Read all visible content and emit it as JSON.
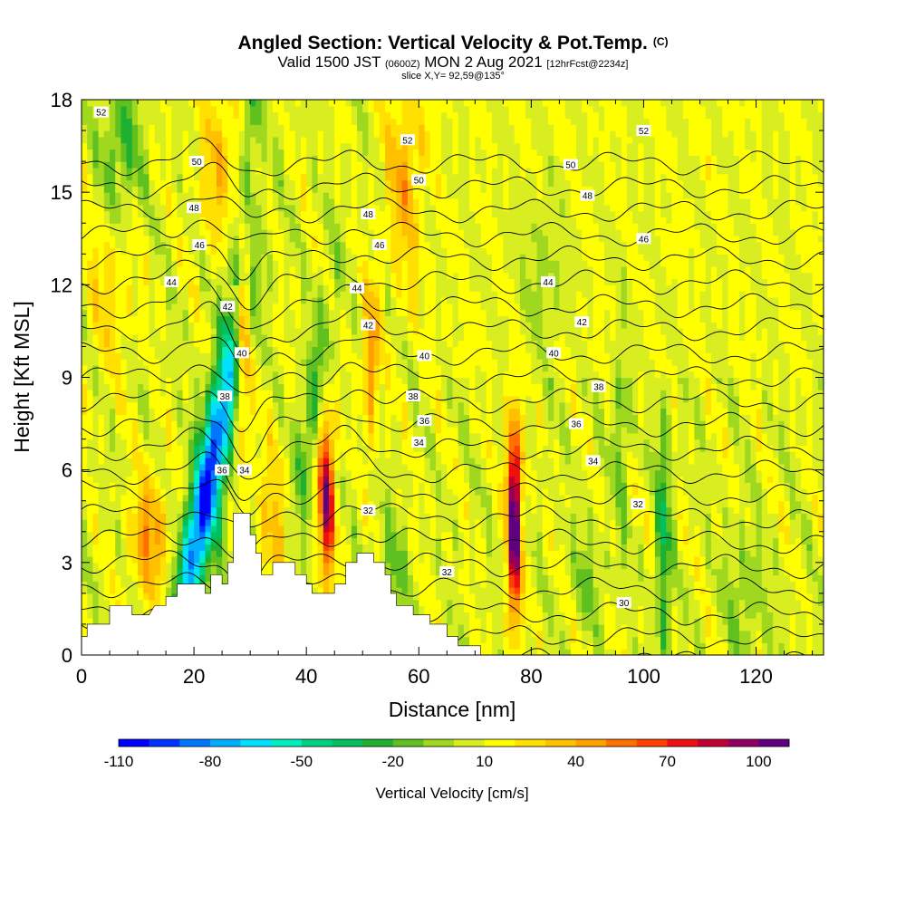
{
  "header": {
    "title": "Angled Section: Vertical Velocity & Pot.Temp.",
    "title_suffix": "(C)",
    "valid_prefix": "Valid 1500 JST",
    "valid_utc": "(0600Z)",
    "valid_date": "MON 2 Aug 2021",
    "forecast": "[12hrFcst@2234z]",
    "slice": "slice X,Y= 92,59@135°"
  },
  "chart_data": {
    "type": "heatmap",
    "xlabel": "Distance [nm]",
    "ylabel": "Height [Kft MSL]",
    "xlim": [
      0,
      132
    ],
    "ylim": [
      0,
      18
    ],
    "x_ticks": [
      0,
      20,
      40,
      60,
      80,
      100,
      120
    ],
    "y_ticks": [
      0,
      3,
      6,
      9,
      12,
      15,
      18
    ],
    "colorbar": {
      "label": "Vertical Velocity [cm/s]",
      "tick_labels": [
        "-110",
        "-80",
        "-50",
        "-20",
        "10",
        "40",
        "70",
        "100"
      ],
      "tick_values": [
        -110,
        -80,
        -50,
        -20,
        10,
        40,
        70,
        100
      ],
      "range": [
        -110,
        110
      ],
      "colors": [
        "#0000ff",
        "#0033ff",
        "#0077ff",
        "#00b0ff",
        "#00e0ff",
        "#00f0c0",
        "#00d080",
        "#00c060",
        "#20b030",
        "#60c020",
        "#a0d820",
        "#d8ee20",
        "#ffff00",
        "#ffe000",
        "#ffc000",
        "#ffa000",
        "#ff7000",
        "#ff4000",
        "#ee1010",
        "#c00030",
        "#900060",
        "#600080"
      ]
    },
    "theta_levels": [
      30,
      31,
      32,
      33,
      34,
      35,
      36,
      37,
      38,
      39,
      40,
      41,
      42,
      43,
      44,
      45,
      46,
      47,
      48,
      49,
      50,
      51,
      52,
      53
    ],
    "contour_labels": [
      {
        "text": "52",
        "x": 3.5,
        "y": 17.6
      },
      {
        "text": "52",
        "x": 58,
        "y": 16.7
      },
      {
        "text": "52",
        "x": 100,
        "y": 17.0
      },
      {
        "text": "50",
        "x": 20.5,
        "y": 16.0
      },
      {
        "text": "50",
        "x": 60,
        "y": 15.4
      },
      {
        "text": "50",
        "x": 87,
        "y": 15.9
      },
      {
        "text": "48",
        "x": 20,
        "y": 14.5
      },
      {
        "text": "48",
        "x": 51,
        "y": 14.3
      },
      {
        "text": "48",
        "x": 90,
        "y": 14.9
      },
      {
        "text": "46",
        "x": 21,
        "y": 13.3
      },
      {
        "text": "46",
        "x": 53,
        "y": 13.3
      },
      {
        "text": "46",
        "x": 100,
        "y": 13.5
      },
      {
        "text": "44",
        "x": 16,
        "y": 12.1
      },
      {
        "text": "44",
        "x": 49,
        "y": 11.9
      },
      {
        "text": "44",
        "x": 83,
        "y": 12.1
      },
      {
        "text": "42",
        "x": 26,
        "y": 11.3
      },
      {
        "text": "42",
        "x": 51,
        "y": 10.7
      },
      {
        "text": "42",
        "x": 89,
        "y": 10.8
      },
      {
        "text": "40",
        "x": 28.5,
        "y": 9.8
      },
      {
        "text": "40",
        "x": 61,
        "y": 9.7
      },
      {
        "text": "40",
        "x": 84,
        "y": 9.8
      },
      {
        "text": "38",
        "x": 25.5,
        "y": 8.4
      },
      {
        "text": "38",
        "x": 59,
        "y": 8.4
      },
      {
        "text": "38",
        "x": 92,
        "y": 8.7
      },
      {
        "text": "36",
        "x": 25,
        "y": 6.0
      },
      {
        "text": "36",
        "x": 61,
        "y": 7.6
      },
      {
        "text": "36",
        "x": 88,
        "y": 7.5
      },
      {
        "text": "34",
        "x": 29,
        "y": 6.0
      },
      {
        "text": "34",
        "x": 60,
        "y": 6.9
      },
      {
        "text": "34",
        "x": 91,
        "y": 6.3
      },
      {
        "text": "32",
        "x": 51,
        "y": 4.7
      },
      {
        "text": "32",
        "x": 65,
        "y": 2.7
      },
      {
        "text": "32",
        "x": 99,
        "y": 4.9
      },
      {
        "text": "30",
        "x": 96.5,
        "y": 1.7
      }
    ],
    "updrafts": [
      {
        "x": 28.5,
        "bottom": 5,
        "top": 14,
        "peak": 55,
        "width": 1.5
      },
      {
        "x": 43.5,
        "bottom": 2.3,
        "top": 8.5,
        "peak": 85,
        "width": 1.4
      },
      {
        "x": 77,
        "bottom": 0.5,
        "top": 8.0,
        "peak": 105,
        "width": 1.3
      },
      {
        "x": 51.5,
        "bottom": 7,
        "top": 12,
        "peak": 45,
        "width": 1.3
      },
      {
        "x": 12,
        "bottom": 2,
        "top": 5,
        "peak": 35,
        "width": 2.5
      }
    ],
    "downdrafts": [
      {
        "x": 24,
        "bottom": 2,
        "top": 6,
        "peak": -90,
        "note": "diagonal band"
      },
      {
        "x": 103.5,
        "bottom": 1,
        "top": 7.5,
        "peak": -35,
        "width": 1.2
      },
      {
        "x": 96,
        "bottom": 4,
        "top": 10,
        "peak": -25,
        "width": 1.2
      },
      {
        "x": 8,
        "bottom": 14,
        "top": 18,
        "peak": -30,
        "width": 3
      }
    ],
    "terrain": [
      [
        0,
        0
      ],
      [
        0,
        0.6
      ],
      [
        1,
        0.6
      ],
      [
        1,
        1.0
      ],
      [
        5,
        1.0
      ],
      [
        5,
        1.6
      ],
      [
        9,
        1.6
      ],
      [
        9,
        1.3
      ],
      [
        12,
        1.3
      ],
      [
        13,
        1.6
      ],
      [
        15,
        1.6
      ],
      [
        15,
        1.9
      ],
      [
        17,
        1.9
      ],
      [
        17,
        2.3
      ],
      [
        22,
        2.3
      ],
      [
        22,
        2.0
      ],
      [
        23,
        2.0
      ],
      [
        23,
        2.6
      ],
      [
        25,
        2.6
      ],
      [
        25,
        2.3
      ],
      [
        26,
        2.3
      ],
      [
        26,
        3.0
      ],
      [
        27,
        3.0
      ],
      [
        27,
        4.6
      ],
      [
        30,
        4.6
      ],
      [
        30,
        3.9
      ],
      [
        31,
        3.9
      ],
      [
        31,
        3.3
      ],
      [
        32,
        3.3
      ],
      [
        32,
        2.6
      ],
      [
        34,
        2.6
      ],
      [
        34,
        3.0
      ],
      [
        38,
        3.0
      ],
      [
        38,
        2.6
      ],
      [
        40,
        2.6
      ],
      [
        40,
        2.3
      ],
      [
        41,
        2.3
      ],
      [
        41,
        2.0
      ],
      [
        45,
        2.0
      ],
      [
        45,
        2.3
      ],
      [
        47,
        2.3
      ],
      [
        47,
        3.0
      ],
      [
        49,
        3.0
      ],
      [
        49,
        3.3
      ],
      [
        52,
        3.3
      ],
      [
        52,
        3.0
      ],
      [
        54,
        3.0
      ],
      [
        54,
        2.6
      ],
      [
        55,
        2.6
      ],
      [
        55,
        2.0
      ],
      [
        56,
        2.0
      ],
      [
        56,
        1.6
      ],
      [
        59,
        1.6
      ],
      [
        59,
        1.3
      ],
      [
        62,
        1.3
      ],
      [
        62,
        1.0
      ],
      [
        65,
        1.0
      ],
      [
        65,
        0.6
      ],
      [
        67,
        0.6
      ],
      [
        67,
        0.3
      ],
      [
        71,
        0.3
      ],
      [
        71,
        0
      ],
      [
        132,
        0
      ]
    ]
  }
}
